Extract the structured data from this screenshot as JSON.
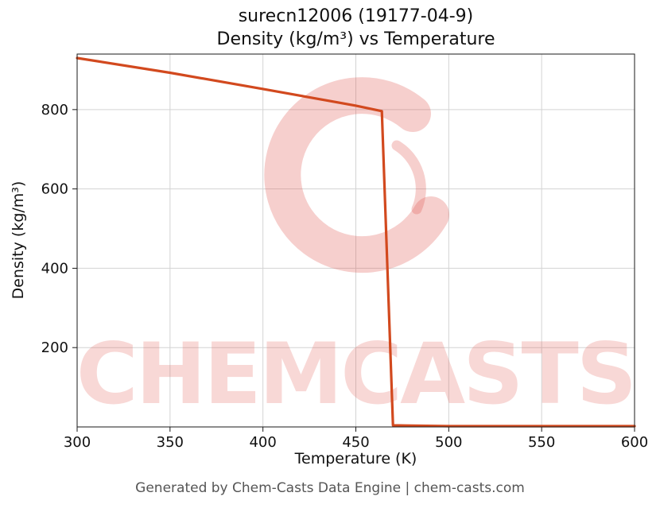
{
  "page": {
    "footer": "Generated by Chem-Casts Data Engine | chem-casts.com"
  },
  "chart_data": {
    "type": "line",
    "title_line1": "surecn12006 (19177-04-9)",
    "title_line2": "Density (kg/m³) vs Temperature",
    "xlabel": "Temperature (K)",
    "ylabel": "Density (kg/m³)",
    "xlim": [
      300,
      600
    ],
    "ylim": [
      0,
      940
    ],
    "x_ticks": [
      300,
      350,
      400,
      450,
      500,
      550,
      600
    ],
    "y_ticks": [
      200,
      400,
      600,
      800
    ],
    "grid": true,
    "legend_position": "none",
    "series": [
      {
        "name": "Density",
        "color": "#d2491e",
        "points": [
          [
            300,
            930
          ],
          [
            350,
            893
          ],
          [
            400,
            852
          ],
          [
            450,
            810
          ],
          [
            464,
            796
          ],
          [
            470,
            4
          ],
          [
            500,
            2
          ],
          [
            550,
            2
          ],
          [
            600,
            2
          ]
        ]
      }
    ],
    "watermark": {
      "text": "CHEMCASTS",
      "color": "#e0544a",
      "text_opacity": 0.22,
      "logo_opacity": 0.28
    },
    "colors": {
      "grid": "#d3d3d3",
      "spine": "#1a1a1a",
      "tick_label": "#111111",
      "footer_text": "#555555"
    }
  }
}
